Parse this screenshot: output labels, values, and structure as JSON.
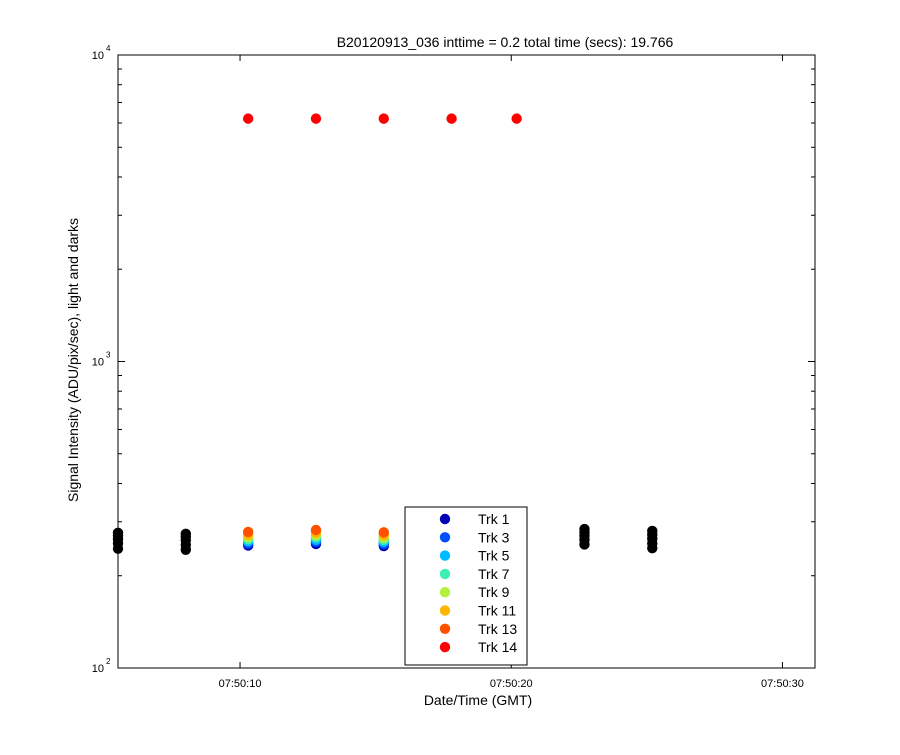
{
  "chart_data": {
    "type": "scatter",
    "title": "B20120913_036 inttime = 0.2 total time (secs): 19.766",
    "xlabel": "Date/Time (GMT)",
    "ylabel": "Signal Intensity (ADU/pix/sec), light and darks",
    "x_scale": "time",
    "y_scale": "log",
    "xlim": [
      "07:50:05.5",
      "07:50:31.2"
    ],
    "ylim": [
      100,
      10000
    ],
    "x_ticks": [
      {
        "value": "07:50:10",
        "label": "07:50:10"
      },
      {
        "value": "07:50:20",
        "label": "07:50:20"
      },
      {
        "value": "07:50:30",
        "label": "07:50:30"
      }
    ],
    "y_ticks": [
      {
        "value": 100,
        "base": "10",
        "exp": "2"
      },
      {
        "value": 1000,
        "base": "10",
        "exp": "3"
      },
      {
        "value": 10000,
        "base": "10",
        "exp": "4"
      }
    ],
    "grid": false,
    "legend_position": "bottom-center",
    "darks": {
      "color": "#000000",
      "times": [
        "07:50:05.5",
        "07:50:08.0",
        "07:50:22.7",
        "07:50:25.2"
      ],
      "values": [
        245,
        255,
        263,
        270,
        276,
        243,
        252,
        261,
        268,
        274,
        253,
        262,
        270,
        277,
        284,
        246,
        255,
        264,
        272,
        280
      ]
    },
    "series": [
      {
        "name": "Trk 1",
        "color": "#0000b4",
        "x": [
          "07:50:10.3",
          "07:50:12.8",
          "07:50:15.3"
        ],
        "y": [
          251,
          254,
          250
        ]
      },
      {
        "name": "Trk 3",
        "color": "#0050ff",
        "x": [
          "07:50:10.3",
          "07:50:12.8",
          "07:50:15.3"
        ],
        "y": [
          255,
          258,
          254
        ]
      },
      {
        "name": "Trk 5",
        "color": "#00bbff",
        "x": [
          "07:50:10.3",
          "07:50:12.8",
          "07:50:15.3"
        ],
        "y": [
          259,
          262,
          258
        ]
      },
      {
        "name": "Trk 7",
        "color": "#3cf0b4",
        "x": [
          "07:50:10.3",
          "07:50:12.8",
          "07:50:15.3"
        ],
        "y": [
          263,
          267,
          262
        ]
      },
      {
        "name": "Trk 9",
        "color": "#b4f03c",
        "x": [
          "07:50:10.3",
          "07:50:12.8",
          "07:50:15.3"
        ],
        "y": [
          267,
          271,
          266
        ]
      },
      {
        "name": "Trk 11",
        "color": "#ffb400",
        "x": [
          "07:50:10.3",
          "07:50:12.8",
          "07:50:15.3"
        ],
        "y": [
          272,
          276,
          271
        ]
      },
      {
        "name": "Trk 13",
        "color": "#ff5000",
        "x": [
          "07:50:10.3",
          "07:50:12.8",
          "07:50:15.3"
        ],
        "y": [
          278,
          282,
          277
        ]
      },
      {
        "name": "Trk 14",
        "color": "#ff0000",
        "x": [
          "07:50:10.3",
          "07:50:12.8",
          "07:50:15.3",
          "07:50:17.8",
          "07:50:20.2"
        ],
        "y": [
          6200,
          6200,
          6200,
          6200,
          6200
        ]
      }
    ]
  }
}
